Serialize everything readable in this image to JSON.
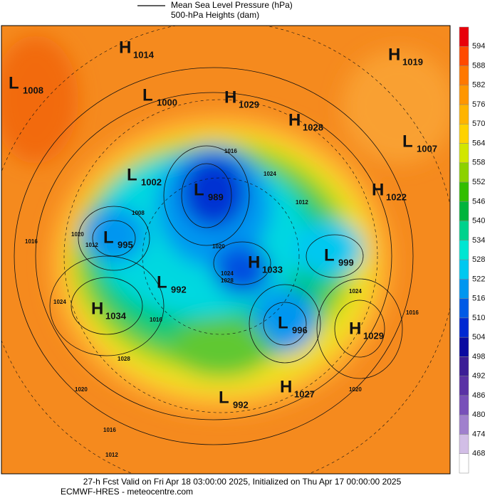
{
  "legend": {
    "line_label": "Mean Sea Level Pressure (hPa)",
    "fill_label": "500-hPa Heights (dam)"
  },
  "pressure_centers": [
    {
      "type": "H",
      "value": 1014
    },
    {
      "type": "L",
      "value": 1008
    },
    {
      "type": "L",
      "value": 1000
    },
    {
      "type": "H",
      "value": 1029
    },
    {
      "type": "H",
      "value": 1028
    },
    {
      "type": "H",
      "value": 1019
    },
    {
      "type": "L",
      "value": 1007
    },
    {
      "type": "L",
      "value": 1002
    },
    {
      "type": "L",
      "value": 989
    },
    {
      "type": "H",
      "value": 1022
    },
    {
      "type": "L",
      "value": 995
    },
    {
      "type": "L",
      "value": 999
    },
    {
      "type": "H",
      "value": 1033
    },
    {
      "type": "L",
      "value": 992
    },
    {
      "type": "H",
      "value": 1034
    },
    {
      "type": "L",
      "value": 996
    },
    {
      "type": "H",
      "value": 1029
    },
    {
      "type": "H",
      "value": 1027
    },
    {
      "type": "L",
      "value": 992
    }
  ],
  "isobar_labels": [
    "1016",
    "1020",
    "1012",
    "1024",
    "1016",
    "1028",
    "1020",
    "1016",
    "1012",
    "1016",
    "1024",
    "1020",
    "1024",
    "1008",
    "1012",
    "1016",
    "1020",
    "1024",
    "1028"
  ],
  "colorbar": {
    "levels": [
      "594",
      "588",
      "582",
      "576",
      "570",
      "564",
      "558",
      "552",
      "546",
      "540",
      "534",
      "528",
      "522",
      "516",
      "510",
      "504",
      "498",
      "492",
      "486",
      "480",
      "474",
      "468"
    ],
    "colors": [
      "#e8000a",
      "#ff4a00",
      "#ff7800",
      "#ff9600",
      "#ffb400",
      "#ffd200",
      "#d2e600",
      "#8cd200",
      "#32be00",
      "#00b43c",
      "#00d28c",
      "#00e6d2",
      "#00c8f0",
      "#0096f0",
      "#005ae6",
      "#0028d2",
      "#0a0aa0",
      "#3c1e96",
      "#5a32a5",
      "#7850b9",
      "#a080cd",
      "#d2bee6",
      "#ffffff"
    ]
  },
  "footer": {
    "line1": "27-h Fcst Valid on Fri Apr 18 03:00:00 2025, Initialized on Thu Apr 17 00:00:00 2025",
    "line2": "ECMWF-HRES - meteocentre.com"
  }
}
